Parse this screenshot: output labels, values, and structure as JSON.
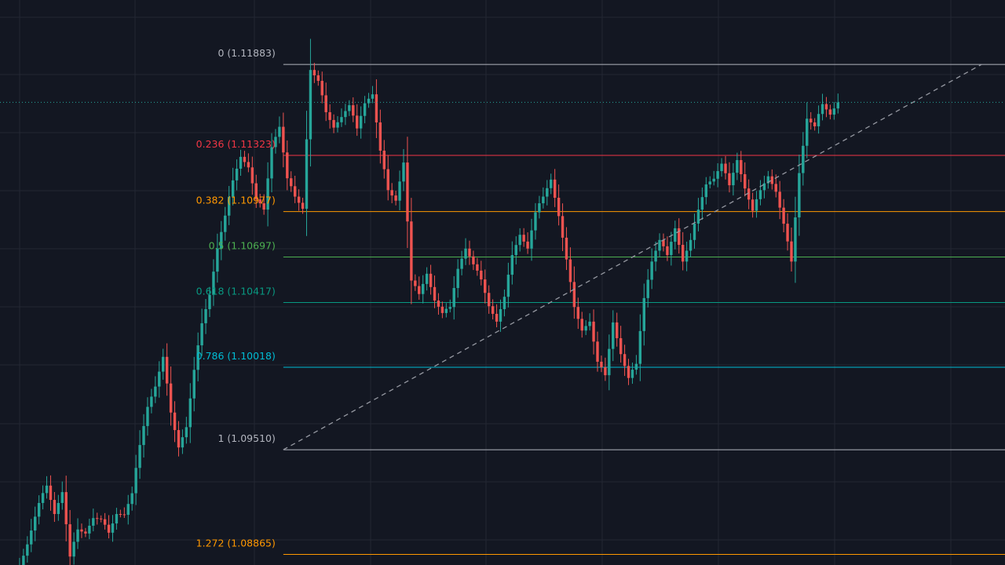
{
  "chart_data": {
    "type": "candlestick",
    "title": "",
    "xlabel": "",
    "ylabel": "",
    "ylim": [
      1.088,
      1.1228
    ],
    "grid": true,
    "current_price": 1.1165,
    "colors": {
      "background": "#131722",
      "grid": "#232733",
      "up": "#26a69a",
      "down": "#ef5350",
      "current_price_line": "#26a69a",
      "trend_line": "#9598a1"
    },
    "candle_offsets": [
      -1.1,
      -0.9,
      -0.6,
      -0.3,
      -0.1,
      0.1,
      0.2,
      0.3
    ],
    "wick_offsets": [
      0.6,
      0.35,
      -0.45,
      0.2
    ],
    "close_path": [
      [
        0,
        1.0873
      ],
      [
        3,
        1.0893
      ],
      [
        6,
        1.0918
      ],
      [
        8,
        1.093
      ],
      [
        10,
        1.0912
      ],
      [
        12,
        1.0925
      ],
      [
        14,
        1.0885
      ],
      [
        16,
        1.0903
      ],
      [
        18,
        1.09
      ],
      [
        20,
        1.0909
      ],
      [
        22,
        1.0908
      ],
      [
        24,
        1.0901
      ],
      [
        26,
        1.0912
      ],
      [
        28,
        1.0911
      ],
      [
        30,
        1.0924
      ],
      [
        32,
        1.0955
      ],
      [
        34,
        1.0978
      ],
      [
        36,
        1.099
      ],
      [
        38,
        1.1008
      ],
      [
        40,
        1.0975
      ],
      [
        42,
        1.0953
      ],
      [
        44,
        1.0965
      ],
      [
        46,
        1.1
      ],
      [
        48,
        1.103
      ],
      [
        50,
        1.1047
      ],
      [
        52,
        1.1075
      ],
      [
        54,
        1.1095
      ],
      [
        56,
        1.1118
      ],
      [
        58,
        1.1132
      ],
      [
        60,
        1.1125
      ],
      [
        62,
        1.1105
      ],
      [
        64,
        1.11
      ],
      [
        66,
        1.1138
      ],
      [
        68,
        1.115
      ],
      [
        70,
        1.1118
      ],
      [
        72,
        1.1108
      ],
      [
        74,
        1.11
      ],
      [
        76,
        1.1185
      ],
      [
        78,
        1.1178
      ],
      [
        80,
        1.116
      ],
      [
        82,
        1.115
      ],
      [
        84,
        1.1156
      ],
      [
        86,
        1.1163
      ],
      [
        88,
        1.115
      ],
      [
        90,
        1.1165
      ],
      [
        92,
        1.117
      ],
      [
        94,
        1.1135
      ],
      [
        96,
        1.1112
      ],
      [
        98,
        1.1105
      ],
      [
        100,
        1.1128
      ],
      [
        102,
        1.1055
      ],
      [
        104,
        1.1048
      ],
      [
        106,
        1.106
      ],
      [
        108,
        1.1043
      ],
      [
        110,
        1.1035
      ],
      [
        112,
        1.104
      ],
      [
        114,
        1.1063
      ],
      [
        116,
        1.1075
      ],
      [
        118,
        1.1065
      ],
      [
        120,
        1.1057
      ],
      [
        122,
        1.104
      ],
      [
        124,
        1.103
      ],
      [
        126,
        1.1045
      ],
      [
        128,
        1.1072
      ],
      [
        130,
        1.1084
      ],
      [
        132,
        1.1075
      ],
      [
        134,
        1.1097
      ],
      [
        136,
        1.1108
      ],
      [
        138,
        1.1118
      ],
      [
        140,
        1.1095
      ],
      [
        142,
        1.1068
      ],
      [
        144,
        1.104
      ],
      [
        146,
        1.1025
      ],
      [
        148,
        1.103
      ],
      [
        150,
        1.1005
      ],
      [
        152,
        1.0998
      ],
      [
        154,
        1.103
      ],
      [
        156,
        1.101
      ],
      [
        158,
        1.0995
      ],
      [
        160,
        1.1005
      ],
      [
        162,
        1.1045
      ],
      [
        164,
        1.1067
      ],
      [
        166,
        1.108
      ],
      [
        168,
        1.1072
      ],
      [
        170,
        1.1088
      ],
      [
        172,
        1.1067
      ],
      [
        174,
        1.108
      ],
      [
        176,
        1.11
      ],
      [
        178,
        1.1115
      ],
      [
        180,
        1.1118
      ],
      [
        182,
        1.1127
      ],
      [
        184,
        1.1115
      ],
      [
        186,
        1.113
      ],
      [
        188,
        1.1112
      ],
      [
        190,
        1.1098
      ],
      [
        192,
        1.1112
      ],
      [
        194,
        1.112
      ],
      [
        196,
        1.111
      ],
      [
        198,
        1.109
      ],
      [
        200,
        1.1068
      ],
      [
        202,
        1.1122
      ],
      [
        204,
        1.1155
      ],
      [
        206,
        1.115
      ],
      [
        208,
        1.1165
      ],
      [
        210,
        1.1158
      ],
      [
        212,
        1.1165
      ]
    ],
    "fib": {
      "x_range_index": [
        69,
        235
      ],
      "levels": [
        {
          "ratio": "0",
          "price": "1.11883",
          "value": 1.11883,
          "color": "#b2b5be"
        },
        {
          "ratio": "0.236",
          "price": "1.11323",
          "value": 1.11323,
          "color": "#f23645"
        },
        {
          "ratio": "0.382",
          "price": "1.10977",
          "value": 1.10977,
          "color": "#ff9800"
        },
        {
          "ratio": "0.5",
          "price": "1.10697",
          "value": 1.10697,
          "color": "#4caf50"
        },
        {
          "ratio": "0.618",
          "price": "1.10417",
          "value": 1.10417,
          "color": "#089981"
        },
        {
          "ratio": "0.786",
          "price": "1.10018",
          "value": 1.10018,
          "color": "#00bcd4"
        },
        {
          "ratio": "1",
          "price": "1.09510",
          "value": 1.0951,
          "color": "#b2b5be"
        },
        {
          "ratio": "1.272",
          "price": "1.08865",
          "value": 1.08865,
          "color": "#ff9800"
        }
      ]
    },
    "trend_line": {
      "from": [
        69,
        1.0951
      ],
      "to": [
        249,
        1.11883
      ]
    }
  }
}
